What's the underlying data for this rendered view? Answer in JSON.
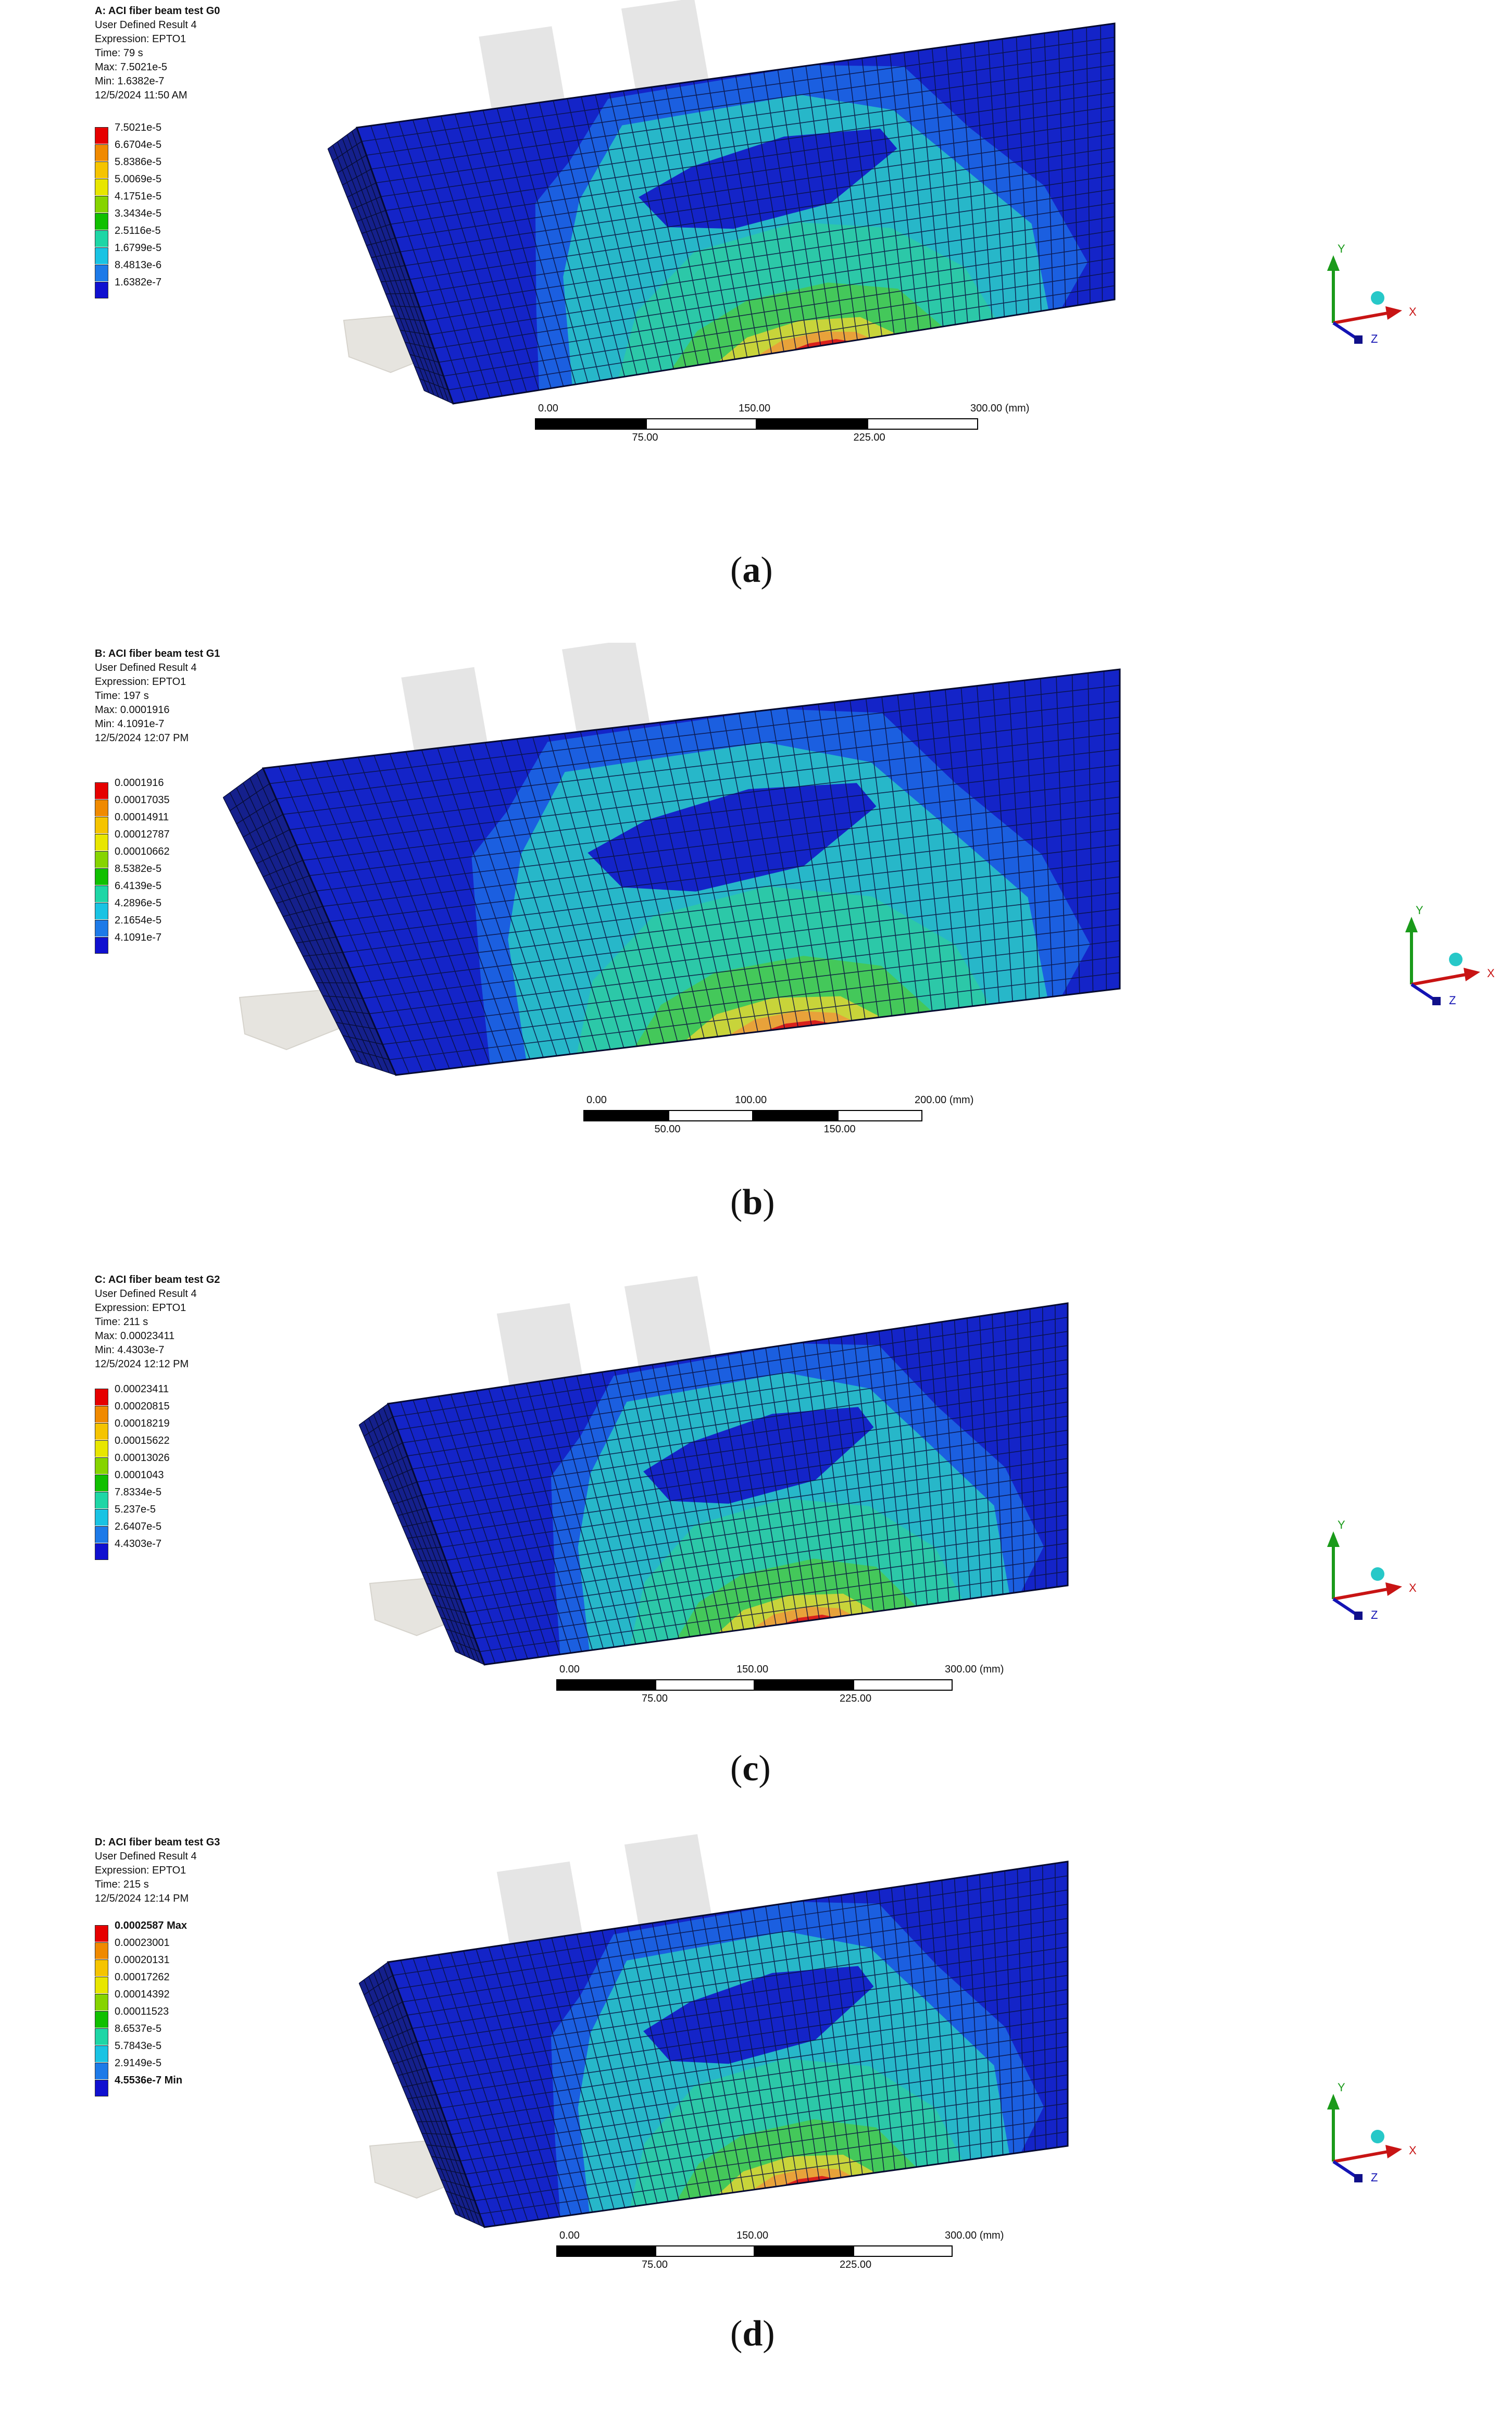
{
  "panels": [
    {
      "id": "a",
      "caption_letter": "a",
      "info": [
        "A: ACI fiber beam test G0",
        "User Defined Result 4",
        "Expression: EPTO1",
        "Time: 79 s",
        "Max: 7.5021e-5",
        "Min: 1.6382e-7",
        "12/5/2024 11:50 AM"
      ],
      "legend": [
        "7.5021e-5",
        "6.6704e-5",
        "5.8386e-5",
        "5.0069e-5",
        "4.1751e-5",
        "3.3434e-5",
        "2.5116e-5",
        "1.6799e-5",
        "8.4813e-6",
        "1.6382e-7"
      ],
      "scale_top": [
        "0.00",
        "150.00",
        "300.00 (mm)"
      ],
      "scale_bottom": [
        "75.00",
        "225.00"
      ]
    },
    {
      "id": "b",
      "caption_letter": "b",
      "info": [
        "B: ACI fiber beam test G1",
        "User Defined Result 4",
        "Expression: EPTO1",
        "Time: 197 s",
        "Max: 0.0001916",
        "Min: 4.1091e-7",
        "12/5/2024 12:07 PM"
      ],
      "legend": [
        "0.0001916",
        "0.00017035",
        "0.00014911",
        "0.00012787",
        "0.00010662",
        "8.5382e-5",
        "6.4139e-5",
        "4.2896e-5",
        "2.1654e-5",
        "4.1091e-7"
      ],
      "scale_top": [
        "0.00",
        "100.00",
        "200.00 (mm)"
      ],
      "scale_bottom": [
        "50.00",
        "150.00"
      ]
    },
    {
      "id": "c",
      "caption_letter": "c",
      "info": [
        "C: ACI fiber beam test G2",
        "User Defined Result 4",
        "Expression: EPTO1",
        "Time: 211 s",
        "Max: 0.00023411",
        "Min: 4.4303e-7",
        "12/5/2024 12:12 PM"
      ],
      "legend": [
        "0.00023411",
        "0.00020815",
        "0.00018219",
        "0.00015622",
        "0.00013026",
        "0.0001043",
        "7.8334e-5",
        "5.237e-5",
        "2.6407e-5",
        "4.4303e-7"
      ],
      "scale_top": [
        "0.00",
        "150.00",
        "300.00 (mm)"
      ],
      "scale_bottom": [
        "75.00",
        "225.00"
      ]
    },
    {
      "id": "d",
      "caption_letter": "d",
      "info": [
        "D: ACI fiber beam test G3",
        "User Defined Result 4",
        "Expression: EPTO1",
        "Time: 215 s",
        "12/5/2024 12:14 PM"
      ],
      "legend": [
        "0.0002587 Max",
        "0.00023001",
        "0.00020131",
        "0.00017262",
        "0.00014392",
        "0.00011523",
        "8.6537e-5",
        "5.7843e-5",
        "2.9149e-5",
        "4.5536e-7 Min"
      ],
      "scale_top": [
        "0.00",
        "150.00",
        "300.00 (mm)"
      ],
      "scale_bottom": [
        "75.00",
        "225.00"
      ]
    }
  ],
  "axis_labels": {
    "y": "Y",
    "x": "X",
    "z": "Z"
  },
  "legend_colors": [
    "#e60000",
    "#f08a00",
    "#f5c400",
    "#e8e600",
    "#86d400",
    "#10c000",
    "#1ed6a6",
    "#19c3e3",
    "#1d7ae8",
    "#1010d0"
  ],
  "contour_colors": {
    "deep_blue": "#1424c8",
    "mid_blue": "#1b5fe0",
    "cyan": "#27b7c9",
    "teal": "#2cc8a8",
    "green": "#44c85a",
    "yellow": "#c8d43a",
    "orange": "#e8a23a",
    "red": "#d8201c",
    "side_face": "#15208c",
    "support": "#e6e4df"
  }
}
